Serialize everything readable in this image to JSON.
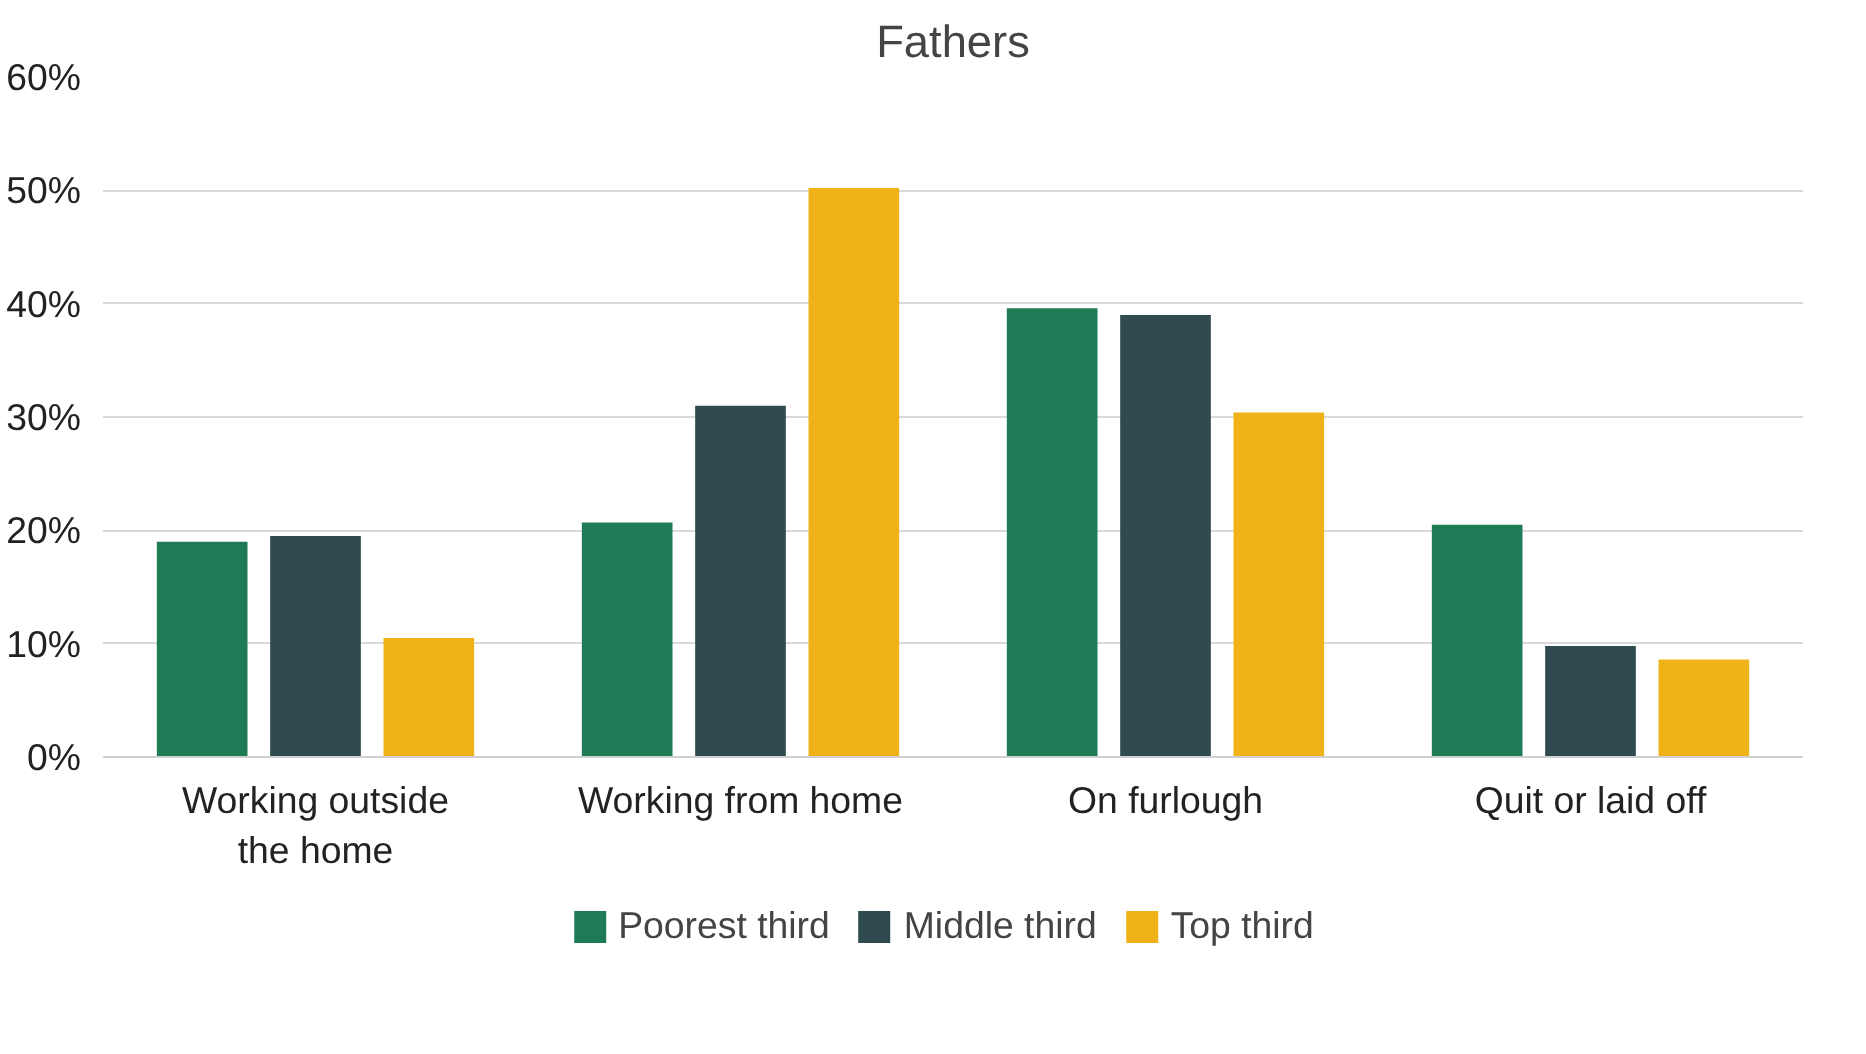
{
  "chart_data": {
    "type": "bar",
    "title": "Fathers",
    "categories": [
      "Working outside the home",
      "Working from home",
      "On furlough",
      "Quit or laid off"
    ],
    "series": [
      {
        "name": "Poorest third",
        "color": "#1e7b56",
        "values": [
          19,
          20.7,
          39.6,
          20.5
        ]
      },
      {
        "name": "Middle third",
        "color": "#2f4b50",
        "values": [
          19.5,
          31,
          39,
          9.8
        ]
      },
      {
        "name": "Top third",
        "color": "#efb319",
        "values": [
          10.5,
          50.2,
          30.4,
          8.6
        ]
      }
    ],
    "ylim": [
      0,
      60
    ],
    "yticks": [
      {
        "value": 0,
        "label": "0%"
      },
      {
        "value": 10,
        "label": "10%"
      },
      {
        "value": 20,
        "label": "20%"
      },
      {
        "value": 30,
        "label": "30%"
      },
      {
        "value": 40,
        "label": "40%"
      },
      {
        "value": 50,
        "label": "50%"
      },
      {
        "value": 60,
        "label": "60%"
      }
    ],
    "grid": "y",
    "legend": "bottom"
  }
}
